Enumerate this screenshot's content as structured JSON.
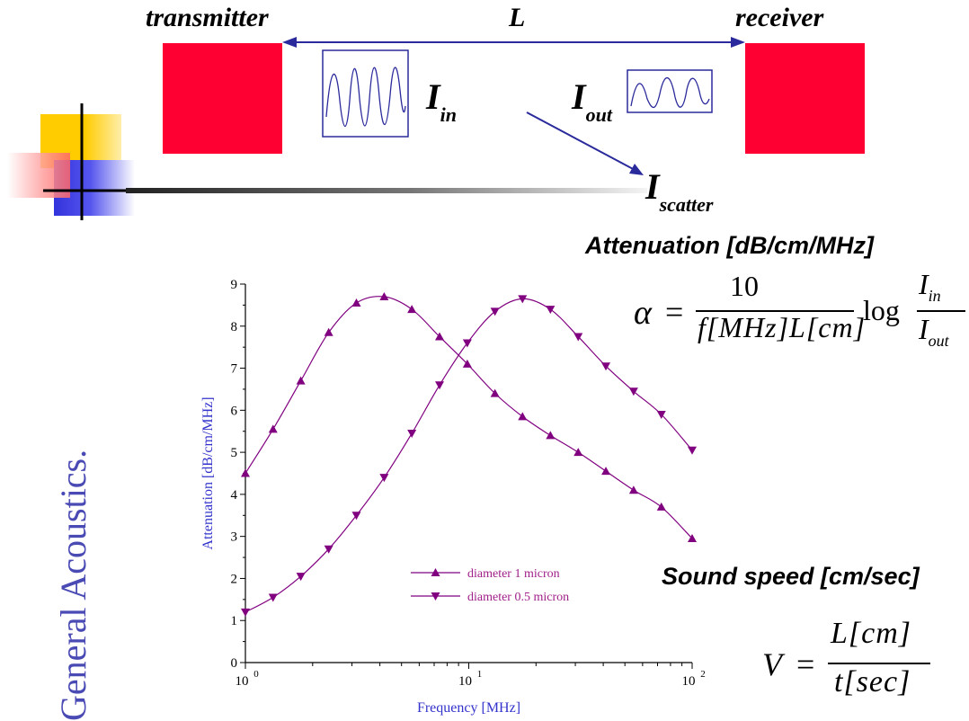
{
  "diagram": {
    "transmitter_label": "transmitter",
    "receiver_label": "receiver",
    "distance_label": "L",
    "i_in": {
      "main": "I",
      "sub": "in"
    },
    "i_out": {
      "main": "I",
      "sub": "out"
    },
    "i_scatter": {
      "main": "I",
      "sub": "scatter"
    }
  },
  "side_title": "General Acoustics.",
  "attenuation": {
    "heading": "Attenuation [dB/cm/MHz]",
    "formula": {
      "lhs": "α",
      "eq": "=",
      "numerator": "10",
      "denominator": "f[MHz]L[cm]",
      "log": "log",
      "frac_num": {
        "main": "I",
        "sub": "in"
      },
      "frac_den": {
        "main": "I",
        "sub": "out"
      }
    }
  },
  "sound_speed": {
    "heading": "Sound speed [cm/sec]",
    "formula": {
      "lhs": "V",
      "eq": "=",
      "numerator": "L[cm]",
      "denominator": "t[sec]"
    }
  },
  "colors": {
    "red": "#ff0033",
    "blue_text": "#4a4ab5",
    "axis_label": "#3333cc",
    "series": "#800080",
    "legend_text": "#a0208a"
  },
  "chart_data": {
    "type": "line",
    "xscale": "log",
    "xlim": [
      1,
      100
    ],
    "ylim": [
      0,
      9
    ],
    "xlabel": "Frequency [MHz]",
    "ylabel": "Attenuation [dB/cm/MHz]",
    "xtick_labels": [
      {
        "base": "10",
        "exp": "0",
        "x": 1
      },
      {
        "base": "10",
        "exp": "1",
        "x": 10
      },
      {
        "base": "10",
        "exp": "2",
        "x": 100
      }
    ],
    "ytick_labels": [
      "0",
      "1",
      "2",
      "3",
      "4",
      "5",
      "6",
      "7",
      "8",
      "9"
    ],
    "legend_position": "center",
    "series": [
      {
        "name": "diameter 1 micron",
        "marker": "triangle-up",
        "x": [
          1.0,
          1.33,
          1.77,
          2.36,
          3.14,
          4.18,
          5.56,
          7.4,
          9.85,
          13.1,
          17.4,
          23.2,
          30.9,
          41.1,
          54.7,
          72.8,
          100
        ],
        "y": [
          4.5,
          5.55,
          6.7,
          7.85,
          8.55,
          8.7,
          8.4,
          7.75,
          7.1,
          6.4,
          5.85,
          5.4,
          5.0,
          4.55,
          4.1,
          3.7,
          2.95
        ]
      },
      {
        "name": "diameter 0.5 micron",
        "marker": "triangle-down",
        "x": [
          1.0,
          1.33,
          1.77,
          2.36,
          3.14,
          4.18,
          5.56,
          7.4,
          9.85,
          13.1,
          17.4,
          23.2,
          30.9,
          41.1,
          54.7,
          72.8,
          100
        ],
        "y": [
          1.2,
          1.55,
          2.05,
          2.7,
          3.5,
          4.4,
          5.45,
          6.6,
          7.6,
          8.35,
          8.65,
          8.4,
          7.75,
          7.05,
          6.45,
          5.9,
          5.05
        ]
      }
    ]
  }
}
